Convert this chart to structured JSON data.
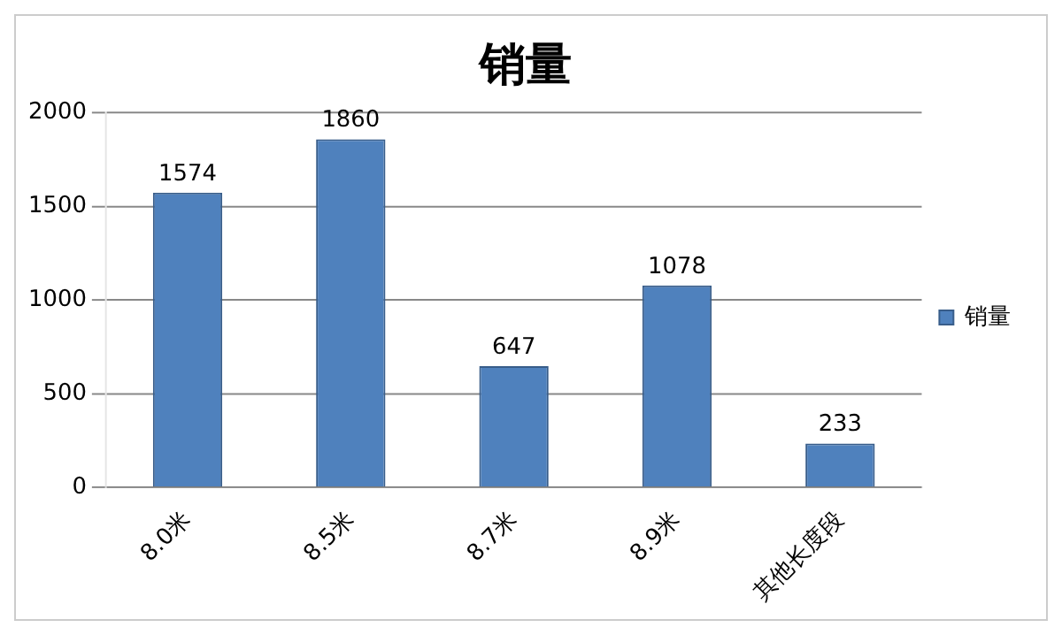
{
  "chart_data": {
    "type": "bar",
    "title": "销量",
    "categories": [
      "8.0米",
      "8.5米",
      "8.7米",
      "8.9米",
      "其他长度段"
    ],
    "series": [
      {
        "name": "销量",
        "color": "#4f81bd",
        "values": [
          1574,
          1860,
          647,
          1078,
          233
        ]
      }
    ],
    "ylim": [
      0,
      2000
    ],
    "yticks": [
      0,
      500,
      1000,
      1500,
      2000
    ],
    "grid": "y",
    "legend": "right",
    "data_labels": true
  }
}
